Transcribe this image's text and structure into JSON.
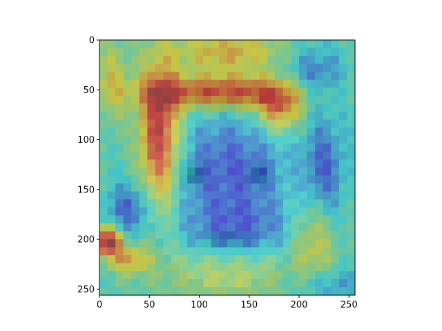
{
  "chart_data": {
    "type": "heatmap",
    "title": "",
    "xlabel": "",
    "ylabel": "",
    "xlim": [
      0,
      256
    ],
    "ylim": [
      256,
      0
    ],
    "x_ticks": [
      0,
      50,
      100,
      150,
      200,
      250
    ],
    "y_ticks": [
      0,
      50,
      100,
      150,
      200,
      250
    ],
    "x_tick_labels": [
      "0",
      "50",
      "100",
      "150",
      "200",
      "250"
    ],
    "y_tick_labels": [
      "0",
      "50",
      "100",
      "150",
      "200",
      "250"
    ],
    "grid": false,
    "legend": "none",
    "colormap": "jet",
    "colormap_stops": [
      "#00007f",
      "#0000ff",
      "#007fff",
      "#00ffff",
      "#7fff7f",
      "#ffff00",
      "#ff7f00",
      "#ff0000",
      "#7f0000"
    ],
    "overlay": "face photograph under semi-transparent attention map",
    "overlay_opacity": 0.5,
    "grid_size": [
      32,
      32
    ],
    "hotspots": [
      {
        "x": 128,
        "y": 12,
        "sx": 40,
        "sy": 14,
        "w": 0.45
      },
      {
        "x": 60,
        "y": 95,
        "sx": 14,
        "sy": 50,
        "w": 0.85
      },
      {
        "x": 125,
        "y": 52,
        "sx": 55,
        "sy": 12,
        "w": 0.75
      },
      {
        "x": 180,
        "y": 70,
        "sx": 16,
        "sy": 16,
        "w": 0.55
      },
      {
        "x": 8,
        "y": 202,
        "sx": 10,
        "sy": 10,
        "w": 0.95
      },
      {
        "x": 30,
        "y": 220,
        "sx": 14,
        "sy": 10,
        "w": 0.45
      },
      {
        "x": 215,
        "y": 200,
        "sx": 15,
        "sy": 30,
        "w": 0.35
      },
      {
        "x": 12,
        "y": 40,
        "sx": 12,
        "sy": 30,
        "w": 0.3
      },
      {
        "x": 128,
        "y": 235,
        "sx": 50,
        "sy": 20,
        "w": 0.25
      }
    ],
    "coldspots": [
      {
        "x": 130,
        "y": 130,
        "sx": 40,
        "sy": 40,
        "w": 0.5
      },
      {
        "x": 225,
        "y": 130,
        "sx": 14,
        "sy": 35,
        "w": 0.45
      },
      {
        "x": 30,
        "y": 170,
        "sx": 16,
        "sy": 18,
        "w": 0.45
      },
      {
        "x": 215,
        "y": 35,
        "sx": 20,
        "sy": 20,
        "w": 0.4
      },
      {
        "x": 140,
        "y": 190,
        "sx": 40,
        "sy": 20,
        "w": 0.35
      },
      {
        "x": 230,
        "y": 245,
        "sx": 25,
        "sy": 12,
        "w": 0.3
      }
    ]
  }
}
